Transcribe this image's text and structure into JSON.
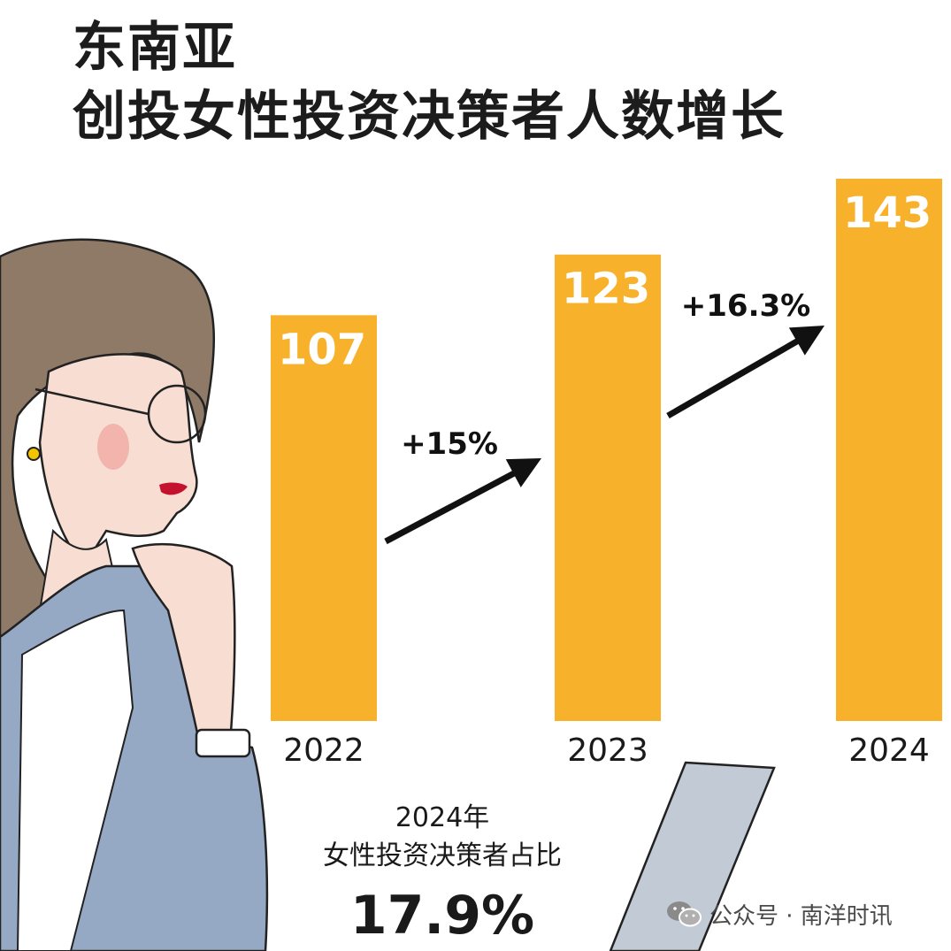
{
  "title": {
    "line1": "东南亚",
    "line2": "创投女性投资决策者人数增长"
  },
  "chart_data": {
    "type": "bar",
    "categories": [
      "2022",
      "2023",
      "2024"
    ],
    "values": [
      107,
      123,
      143
    ],
    "growth_labels": [
      "+15%",
      "+16.3%"
    ],
    "ylim": [
      0,
      150
    ],
    "grid": false,
    "legend": "none",
    "bar_color": "#F8B12A",
    "value_label_color": "#ffffff"
  },
  "stat": {
    "year": "2024年",
    "label": "女性投资决策者占比",
    "value": "17.9%"
  },
  "watermark": {
    "icon": "wechat-icon",
    "text": "公众号 · 南洋时讯"
  },
  "colors": {
    "hair": "#8f7a68",
    "skin": "#f8ddd2",
    "jacket": "#95a8c4",
    "lips": "#c4122e",
    "earring": "#f5c400",
    "tablet": "#c2cbd5"
  }
}
